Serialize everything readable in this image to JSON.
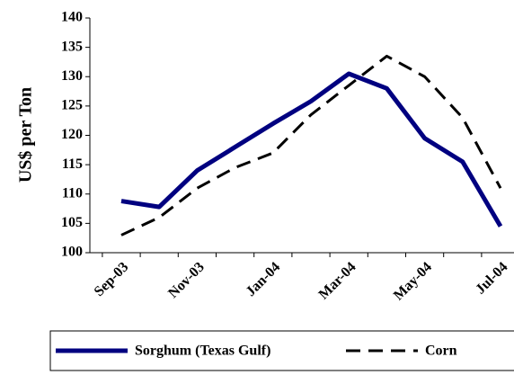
{
  "chart_data": {
    "type": "line",
    "y_label": "US$ per Ton",
    "categories": [
      "Sep-03",
      null,
      "Nov-03",
      null,
      "Jan-04",
      null,
      "Mar-04",
      null,
      "May-04",
      null,
      "Jul-04"
    ],
    "series": [
      {
        "name": "Sorghum (Texas Gulf)",
        "color": "#000080",
        "dash": "solid",
        "values": [
          108.8,
          107.8,
          114,
          118,
          122,
          125.8,
          130.5,
          128,
          119.5,
          115.5,
          104.5
        ]
      },
      {
        "name": "Corn",
        "color": "#000000",
        "dash": "dashed",
        "values": [
          103,
          106,
          111,
          114.5,
          117,
          123.5,
          128.5,
          133.5,
          130,
          123,
          111
        ]
      }
    ],
    "ylim": [
      100,
      140
    ],
    "yticks": [
      100,
      105,
      110,
      115,
      120,
      125,
      130,
      135,
      140
    ],
    "legend": "bottom"
  }
}
